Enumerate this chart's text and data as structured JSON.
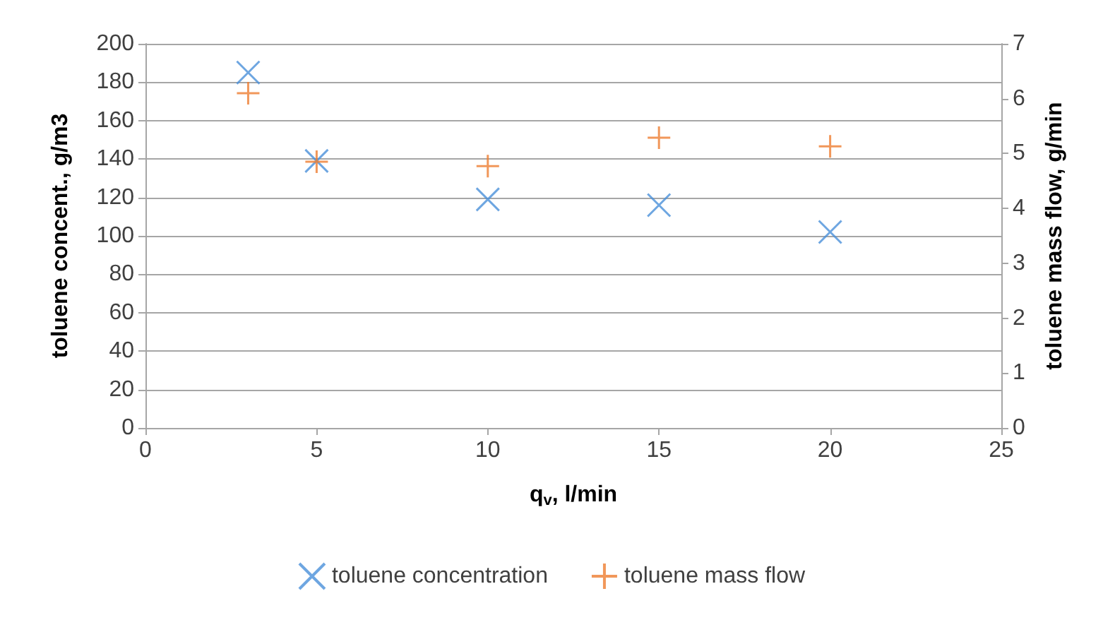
{
  "chart_data": {
    "type": "scatter",
    "xlabel": "q$_{v}$, l/min",
    "ylabel": "toluene concent., g/m3",
    "y2label": "toluene mass flow, g/min",
    "xlim": [
      0,
      25
    ],
    "xticks": [
      0,
      5,
      10,
      15,
      20,
      25
    ],
    "ylim": [
      0,
      200
    ],
    "yticks": [
      0,
      20,
      40,
      60,
      80,
      100,
      120,
      140,
      160,
      180,
      200
    ],
    "y2lim": [
      0,
      7
    ],
    "y2ticks": [
      0,
      1,
      2,
      3,
      4,
      5,
      6,
      7
    ],
    "grid": "y",
    "legend": "bottom",
    "marker": "cross",
    "series": [
      {
        "name": "toluene concentration",
        "color": "#4a90d9",
        "x": [
          3,
          5,
          10,
          15,
          20
        ],
        "values": [
          185,
          139,
          119,
          116,
          102
        ]
      },
      {
        "name": "toluene mass flow",
        "color": "#ed7d31",
        "axis": "y2",
        "x": [
          3,
          5,
          10,
          15,
          20
        ],
        "values": [
          6.1,
          4.85,
          4.77,
          5.29,
          5.13
        ]
      }
    ]
  }
}
